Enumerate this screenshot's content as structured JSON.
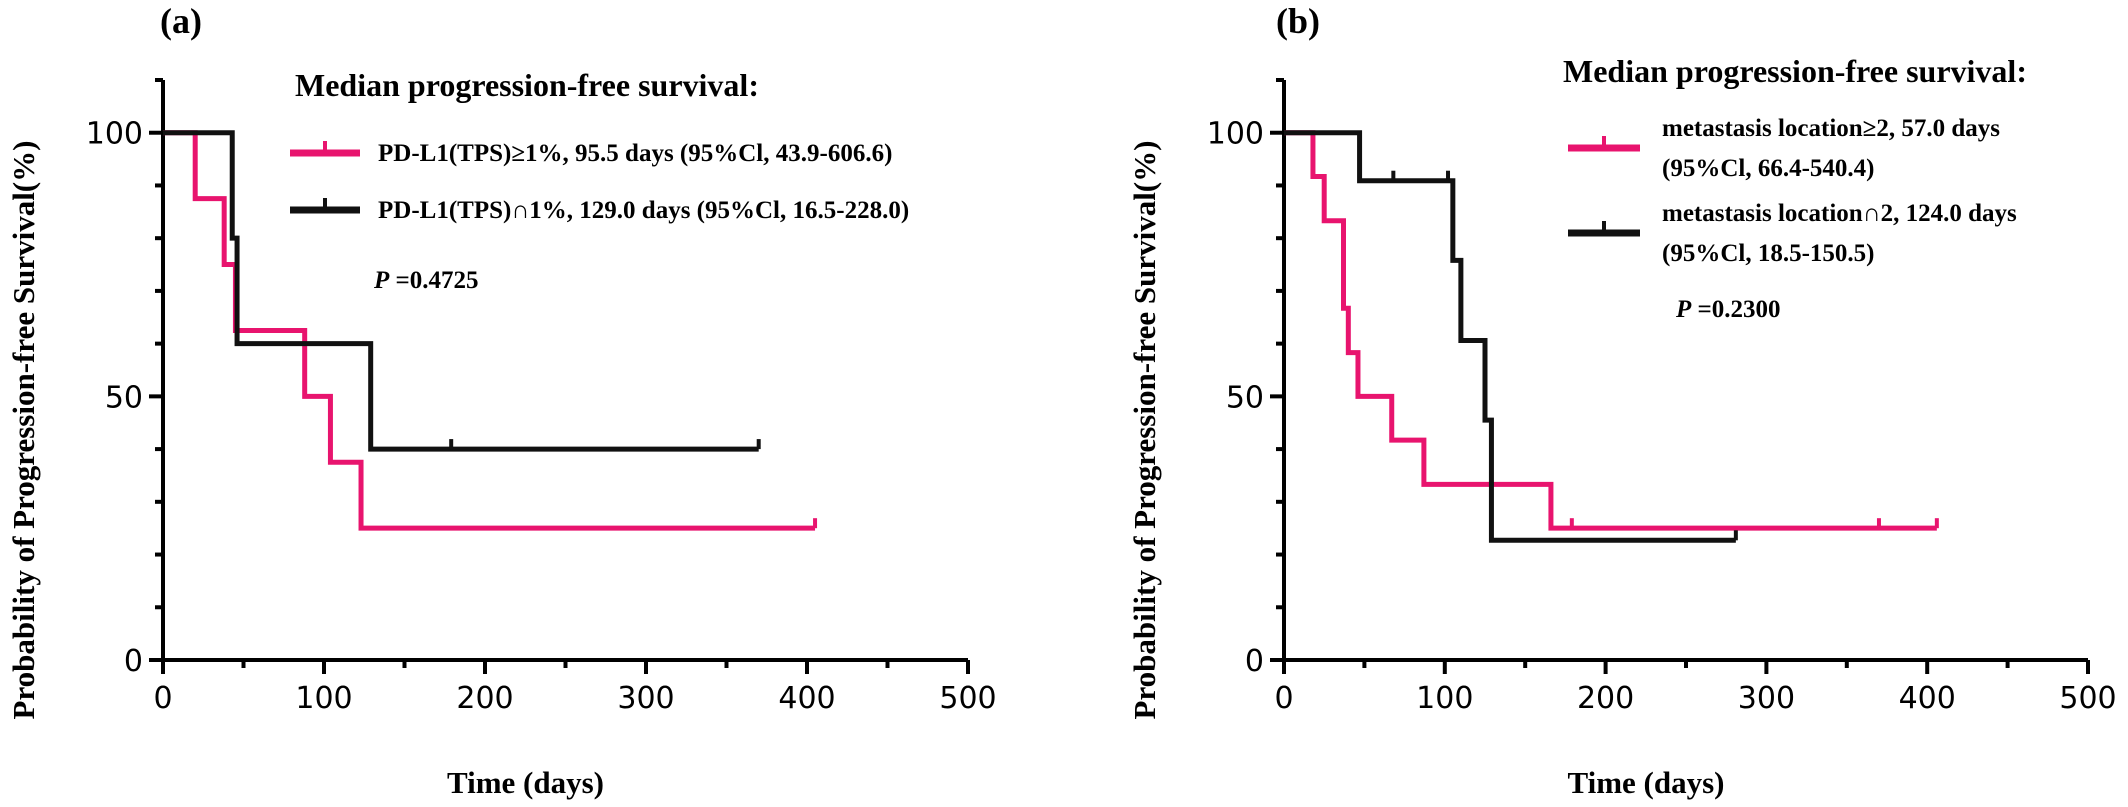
{
  "chart_data": [
    {
      "type": "line",
      "panel_label": "(a)",
      "xlabel": "Time (days)",
      "ylabel": "Probability of Progression-free Survival(%)",
      "xlim": [
        0,
        500
      ],
      "ylim": [
        0,
        110
      ],
      "xticks": [
        0,
        100,
        200,
        300,
        400,
        500
      ],
      "yticks": [
        0,
        50,
        100
      ],
      "legend_title": "Median progression-free survival:",
      "legend_placement": "top-right",
      "p_label": "P",
      "p_value": " =0.4725",
      "series": [
        {
          "legend_lines": [
            "PD-L1(TPS)≥1%, 95.5 days (95%Cl, 43.9-606.6)"
          ],
          "color": "#e8146e",
          "steps": [
            [
              0,
              100
            ],
            [
              20,
              87.5
            ],
            [
              38,
              75
            ],
            [
              45,
              62.5
            ],
            [
              88,
              50
            ],
            [
              104,
              37.5
            ],
            [
              123,
              25
            ],
            [
              405,
              25
            ]
          ],
          "censored": [
            [
              405,
              25
            ]
          ]
        },
        {
          "legend_lines": [
            "PD-L1(TPS)∩1%, 129.0 days (95%Cl, 16.5-228.0)"
          ],
          "color": "#111111",
          "steps": [
            [
              0,
              100
            ],
            [
              43,
              80
            ],
            [
              46,
              60
            ],
            [
              129,
              40
            ],
            [
              370,
              40
            ]
          ],
          "censored": [
            [
              179,
              40
            ],
            [
              370,
              40
            ]
          ]
        }
      ]
    },
    {
      "type": "line",
      "panel_label": "(b)",
      "xlabel": "Time (days)",
      "ylabel": "Probability of Progression-free Survival(%)",
      "xlim": [
        0,
        500
      ],
      "ylim": [
        0,
        110
      ],
      "xticks": [
        0,
        100,
        200,
        300,
        400,
        500
      ],
      "yticks": [
        0,
        50,
        100
      ],
      "legend_title": "Median progression-free survival:",
      "legend_placement": "top-right",
      "p_label": "P",
      "p_value": " =0.2300",
      "series": [
        {
          "legend_lines": [
            "metastasis location≥2, 57.0 days",
            "(95%Cl, 66.4-540.4)"
          ],
          "color": "#e8146e",
          "steps": [
            [
              0,
              100
            ],
            [
              18,
              91.7
            ],
            [
              25,
              83.3
            ],
            [
              37,
              66.7
            ],
            [
              40,
              58.3
            ],
            [
              46,
              50
            ],
            [
              67,
              41.7
            ],
            [
              87,
              33.3
            ],
            [
              166,
              25
            ],
            [
              406,
              25
            ]
          ],
          "censored": [
            [
              179,
              25
            ],
            [
              370,
              25
            ],
            [
              406,
              25
            ]
          ]
        },
        {
          "legend_lines": [
            "metastasis location∩2, 124.0 days",
            "(95%Cl, 18.5-150.5)"
          ],
          "color": "#111111",
          "steps": [
            [
              0,
              100
            ],
            [
              47,
              90.9
            ],
            [
              105,
              75.8
            ],
            [
              110,
              60.6
            ],
            [
              125,
              45.5
            ],
            [
              129,
              22.7
            ],
            [
              281,
              22.7
            ]
          ],
          "censored": [
            [
              68,
              90.9
            ],
            [
              102,
              90.9
            ],
            [
              281,
              22.7
            ]
          ]
        }
      ]
    }
  ]
}
